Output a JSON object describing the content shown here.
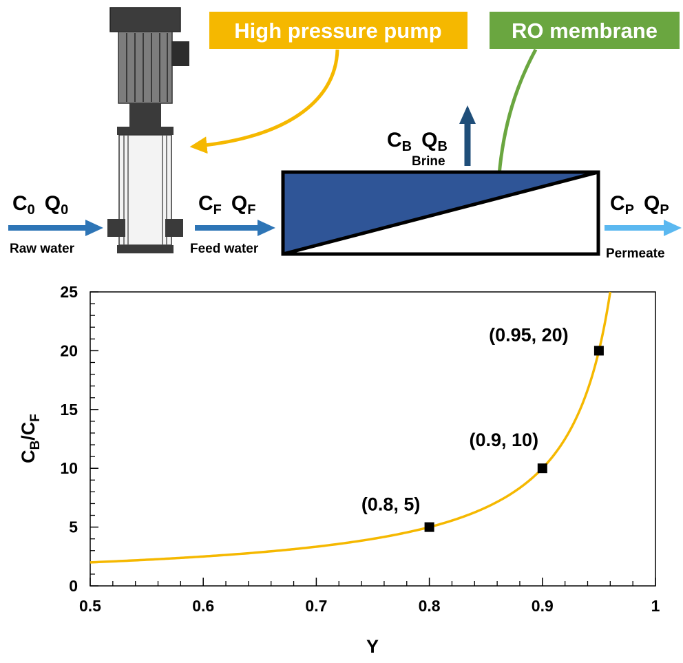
{
  "diagram": {
    "labels": {
      "pump": "High pressure pump",
      "membrane": "RO membrane",
      "raw_water": "Raw water",
      "feed_water": "Feed water",
      "brine": "Brine",
      "permeate": "Permeate"
    },
    "symbols": {
      "raw": {
        "c": "C",
        "c_sub": "0",
        "q": "Q",
        "q_sub": "0"
      },
      "feed": {
        "c": "C",
        "c_sub": "F",
        "q": "Q",
        "q_sub": "F"
      },
      "brine": {
        "c": "C",
        "c_sub": "B",
        "q": "Q",
        "q_sub": "B"
      },
      "permeate": {
        "c": "C",
        "c_sub": "P",
        "q": "Q",
        "q_sub": "P"
      }
    },
    "colors": {
      "pump_label": "#f5b800",
      "membrane_label": "#6aa640",
      "membrane_fill": "#2f5597",
      "raw_arrow": "#2e75b6",
      "brine_arrow": "#1f4e79",
      "permeate_arrow": "#5bb8f0"
    }
  },
  "chart_data": {
    "type": "line",
    "xlabel": "Y",
    "ylabel": {
      "main": "C",
      "sub1": "B",
      "slash": "/C",
      "sub2": "F"
    },
    "xlim": [
      0.5,
      1
    ],
    "ylim": [
      0,
      25
    ],
    "x_ticks": [
      "0.5",
      "0.6",
      "0.7",
      "0.8",
      "0.9",
      "1"
    ],
    "y_ticks": [
      "0",
      "5",
      "10",
      "15",
      "20",
      "25"
    ],
    "series": [
      {
        "formula": "1/(1-Y)",
        "x_start": 0.5,
        "x_end": 0.96,
        "color": "#f5b800"
      }
    ],
    "points": [
      {
        "x": 0.8,
        "y": 5,
        "label": "(0.8, 5)"
      },
      {
        "x": 0.9,
        "y": 10,
        "label": "(0.9, 10)"
      },
      {
        "x": 0.95,
        "y": 20,
        "label": "(0.95, 20)"
      }
    ]
  }
}
